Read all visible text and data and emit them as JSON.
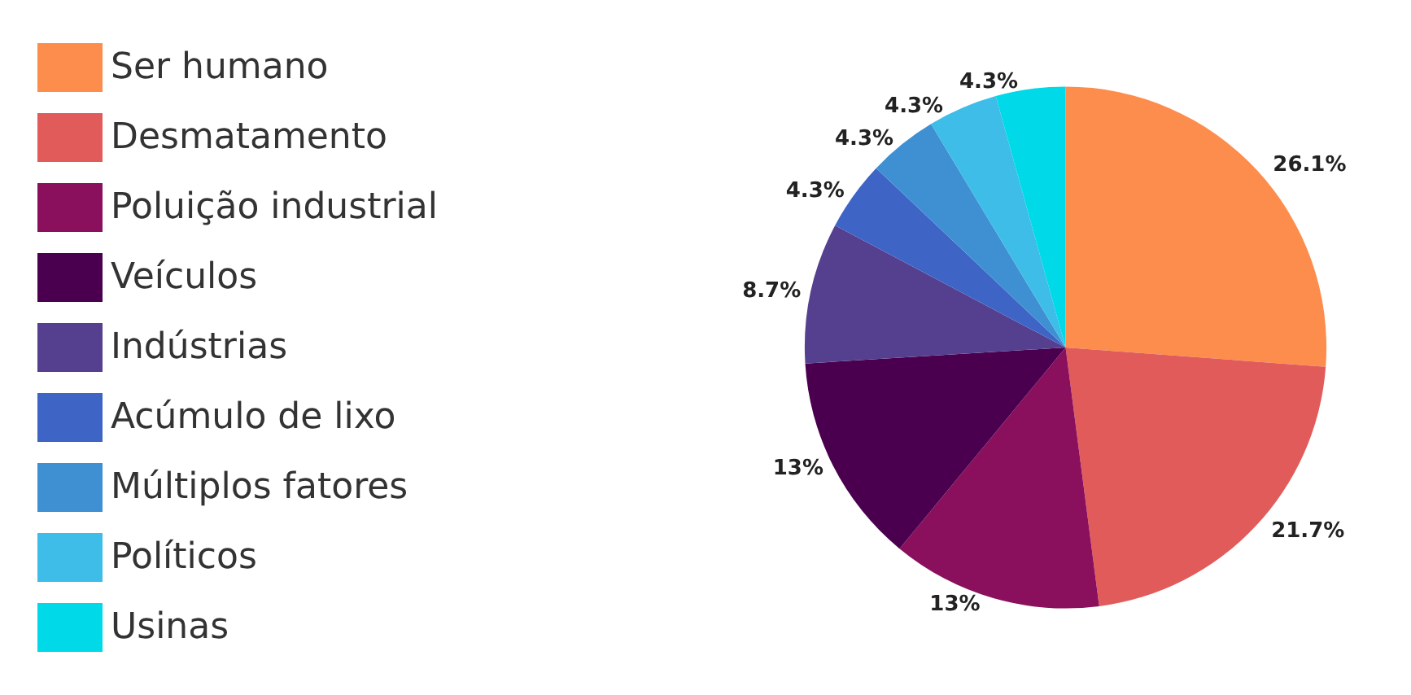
{
  "chart_data": {
    "type": "pie",
    "categories": [
      "Ser humano",
      "Desmatamento",
      "Poluição industrial",
      "Veículos",
      "Indústrias",
      "Acúmulo de lixo",
      "Múltiplos fatores",
      "Políticos",
      "Usinas"
    ],
    "values": [
      26.1,
      21.7,
      13,
      13,
      8.7,
      4.3,
      4.3,
      4.3,
      4.3
    ],
    "colors": [
      "#fc8d4d",
      "#e15b5b",
      "#8a0f5c",
      "#4a004f",
      "#553f8f",
      "#3e64c6",
      "#3f90d3",
      "#3dbde8",
      "#00d9e8"
    ],
    "value_labels": [
      "26.1%",
      "21.7%",
      "13%",
      "13%",
      "8.7%",
      "4.3%",
      "4.3%",
      "4.3%",
      "4.3%"
    ],
    "legend": "left"
  }
}
